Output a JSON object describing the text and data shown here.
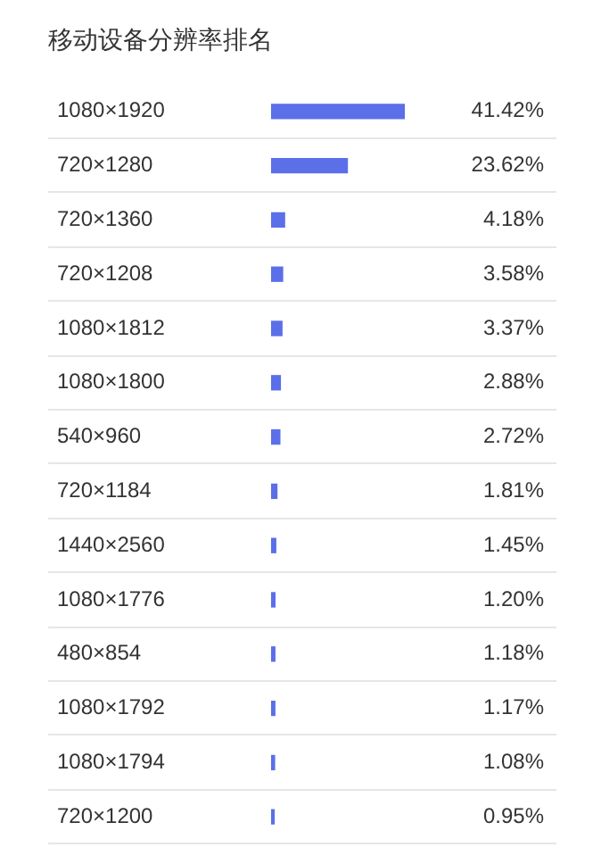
{
  "chart_data": {
    "type": "bar",
    "orientation": "horizontal",
    "title": "移动设备分辨率排名",
    "categories": [
      "1080×1920",
      "720×1280",
      "720×1360",
      "720×1208",
      "1080×1812",
      "1080×1800",
      "540×960",
      "720×1184",
      "1440×2560",
      "1080×1776",
      "480×854",
      "1080×1792",
      "1080×1794",
      "720×1200"
    ],
    "values": [
      41.42,
      23.62,
      4.18,
      3.58,
      3.37,
      2.88,
      2.72,
      1.81,
      1.45,
      1.2,
      1.18,
      1.17,
      1.08,
      0.95
    ],
    "value_labels": [
      "41.42%",
      "23.62%",
      "4.18%",
      "3.58%",
      "3.37%",
      "2.88%",
      "2.72%",
      "1.81%",
      "1.45%",
      "1.20%",
      "1.18%",
      "1.17%",
      "1.08%",
      "0.95%"
    ],
    "color": "#5b6fe8",
    "grid": "y",
    "legend": false
  }
}
